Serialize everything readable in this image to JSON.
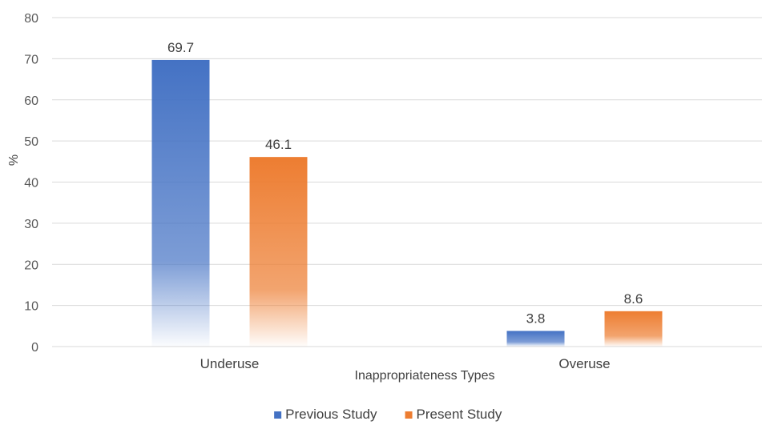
{
  "chart_data": {
    "type": "bar",
    "categories": [
      "Underuse",
      "Overuse"
    ],
    "series": [
      {
        "name": "Previous Study",
        "values": [
          69.7,
          3.8
        ],
        "color": "#4472c4"
      },
      {
        "name": "Present Study",
        "values": [
          46.1,
          8.6
        ],
        "color": "#ed7d31"
      }
    ],
    "data_labels": [
      [
        "69.7",
        "3.8"
      ],
      [
        "46.1",
        "8.6"
      ]
    ],
    "title": "",
    "xlabel": "Inappropriateness Types",
    "ylabel": "%",
    "ylim": [
      0,
      80
    ],
    "yticks": [
      0,
      10,
      20,
      30,
      40,
      50,
      60,
      70,
      80
    ],
    "grid": true,
    "legend_position": "bottom-center",
    "bar_fill": "gradient fading to white at base"
  }
}
